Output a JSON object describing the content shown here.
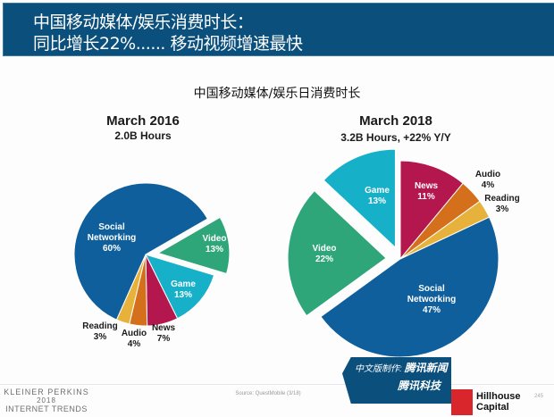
{
  "header": {
    "line1": "中国移动媒体/娱乐消费时长：",
    "line2": "同比增长22%...... 移动视频增速最快",
    "bg_color": "#0b4f7c"
  },
  "chart_data": [
    {
      "type": "pie",
      "chart_title": "中国移动媒体/娱乐日消费时长",
      "title": "March 2016",
      "subtitle": "2.0B Hours",
      "slices": [
        {
          "name": "Video",
          "value": 13,
          "label": "13%",
          "color": "#2ea67a",
          "exploded": true
        },
        {
          "name": "Game",
          "value": 13,
          "label": "13%",
          "color": "#16b1c9",
          "exploded": false
        },
        {
          "name": "News",
          "value": 7,
          "label": "7%",
          "color": "#b4174d",
          "exploded": false
        },
        {
          "name": "Audio",
          "value": 4,
          "label": "4%",
          "color": "#d4701b",
          "exploded": false
        },
        {
          "name": "Reading",
          "value": 3,
          "label": "3%",
          "color": "#e6b23c",
          "exploded": false
        },
        {
          "name": "Social Networking",
          "value": 60,
          "label": "60%",
          "color": "#0e5f9b",
          "exploded": false
        }
      ]
    },
    {
      "type": "pie",
      "title": "March 2018",
      "subtitle": "3.2B Hours, +22% Y/Y",
      "slices": [
        {
          "name": "News",
          "value": 11,
          "label": "11%",
          "color": "#b4174d",
          "exploded": false
        },
        {
          "name": "Audio",
          "value": 4,
          "label": "4%",
          "color": "#d4701b",
          "exploded": false
        },
        {
          "name": "Reading",
          "value": 3,
          "label": "3%",
          "color": "#e6b23c",
          "exploded": false
        },
        {
          "name": "Social Networking",
          "value": 47,
          "label": "47%",
          "color": "#0e5f9b",
          "exploded": false
        },
        {
          "name": "Video",
          "value": 22,
          "label": "22%",
          "color": "#2ea67a",
          "exploded": true
        },
        {
          "name": "Game",
          "value": 13,
          "label": "13%",
          "color": "#16b1c9",
          "exploded": true
        }
      ]
    }
  ],
  "footer": {
    "brand": "KLEINER PERKINS",
    "year": "2018",
    "report": "INTERNET TRENDS",
    "source": "Source: QuestMobile (3/18)",
    "translator_label": "中文版制作:",
    "partner1": "腾讯新闻",
    "partner2": "腾讯科技",
    "hillhouse_line1": "Hillhouse",
    "hillhouse_line2": "Capital",
    "page_number": "245"
  }
}
